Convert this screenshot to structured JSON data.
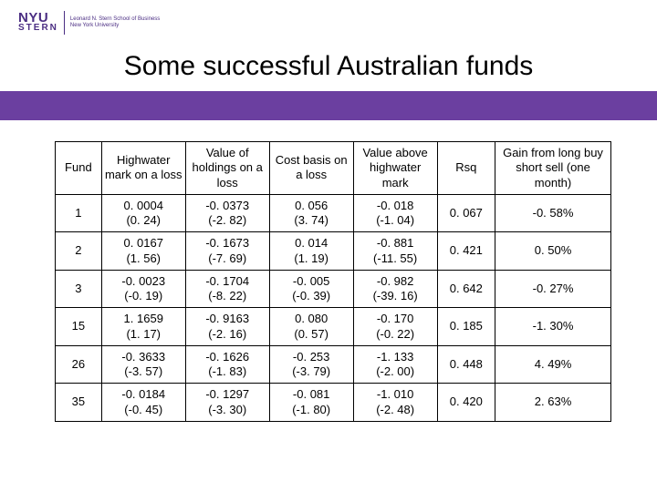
{
  "logo": {
    "top": "NYU",
    "bottom": "STERN",
    "sub1": "Leonard N. Stern School of Business",
    "sub2": "New York University"
  },
  "title": "Some successful Australian funds",
  "accent_color": "#6b3fa0",
  "table": {
    "columns": [
      "Fund",
      "Highwater mark on a loss",
      "Value of holdings on a loss",
      "Cost basis on a loss",
      "Value above highwater mark",
      "Rsq",
      "Gain from long buy short sell (one month)"
    ],
    "rows": [
      {
        "fund": "1",
        "hw": "0. 0004",
        "hw_p": "(0. 24)",
        "vh": "-0. 0373",
        "vh_p": "(-2. 82)",
        "cb": "0. 056",
        "cb_p": "(3. 74)",
        "va": "-0. 018",
        "va_p": "(-1. 04)",
        "rsq": "0. 067",
        "gain": "-0. 58%"
      },
      {
        "fund": "2",
        "hw": "0. 0167",
        "hw_p": "(1. 56)",
        "vh": "-0. 1673",
        "vh_p": "(-7. 69)",
        "cb": "0. 014",
        "cb_p": "(1. 19)",
        "va": "-0. 881",
        "va_p": "(-11. 55)",
        "rsq": "0. 421",
        "gain": "0. 50%"
      },
      {
        "fund": "3",
        "hw": "-0. 0023",
        "hw_p": "(-0. 19)",
        "vh": "-0. 1704",
        "vh_p": "(-8. 22)",
        "cb": "-0. 005",
        "cb_p": "(-0. 39)",
        "va": "-0. 982",
        "va_p": "(-39. 16)",
        "rsq": "0. 642",
        "gain": "-0. 27%"
      },
      {
        "fund": "15",
        "hw": "1. 1659",
        "hw_p": "(1. 17)",
        "vh": "-0. 9163",
        "vh_p": "(-2. 16)",
        "cb": "0. 080",
        "cb_p": "(0. 57)",
        "va": "-0. 170",
        "va_p": "(-0. 22)",
        "rsq": "0. 185",
        "gain": "-1. 30%"
      },
      {
        "fund": "26",
        "hw": "-0. 3633",
        "hw_p": "(-3. 57)",
        "vh": "-0. 1626",
        "vh_p": "(-1. 83)",
        "cb": "-0. 253",
        "cb_p": "(-3. 79)",
        "va": "-1. 133",
        "va_p": "(-2. 00)",
        "rsq": "0. 448",
        "gain": "4. 49%"
      },
      {
        "fund": "35",
        "hw": "-0. 0184",
        "hw_p": "(-0. 45)",
        "vh": "-0. 1297",
        "vh_p": "(-3. 30)",
        "cb": "-0. 081",
        "cb_p": "(-1. 80)",
        "va": "-1. 010",
        "va_p": "(-2. 48)",
        "rsq": "0. 420",
        "gain": "2. 63%"
      }
    ]
  }
}
